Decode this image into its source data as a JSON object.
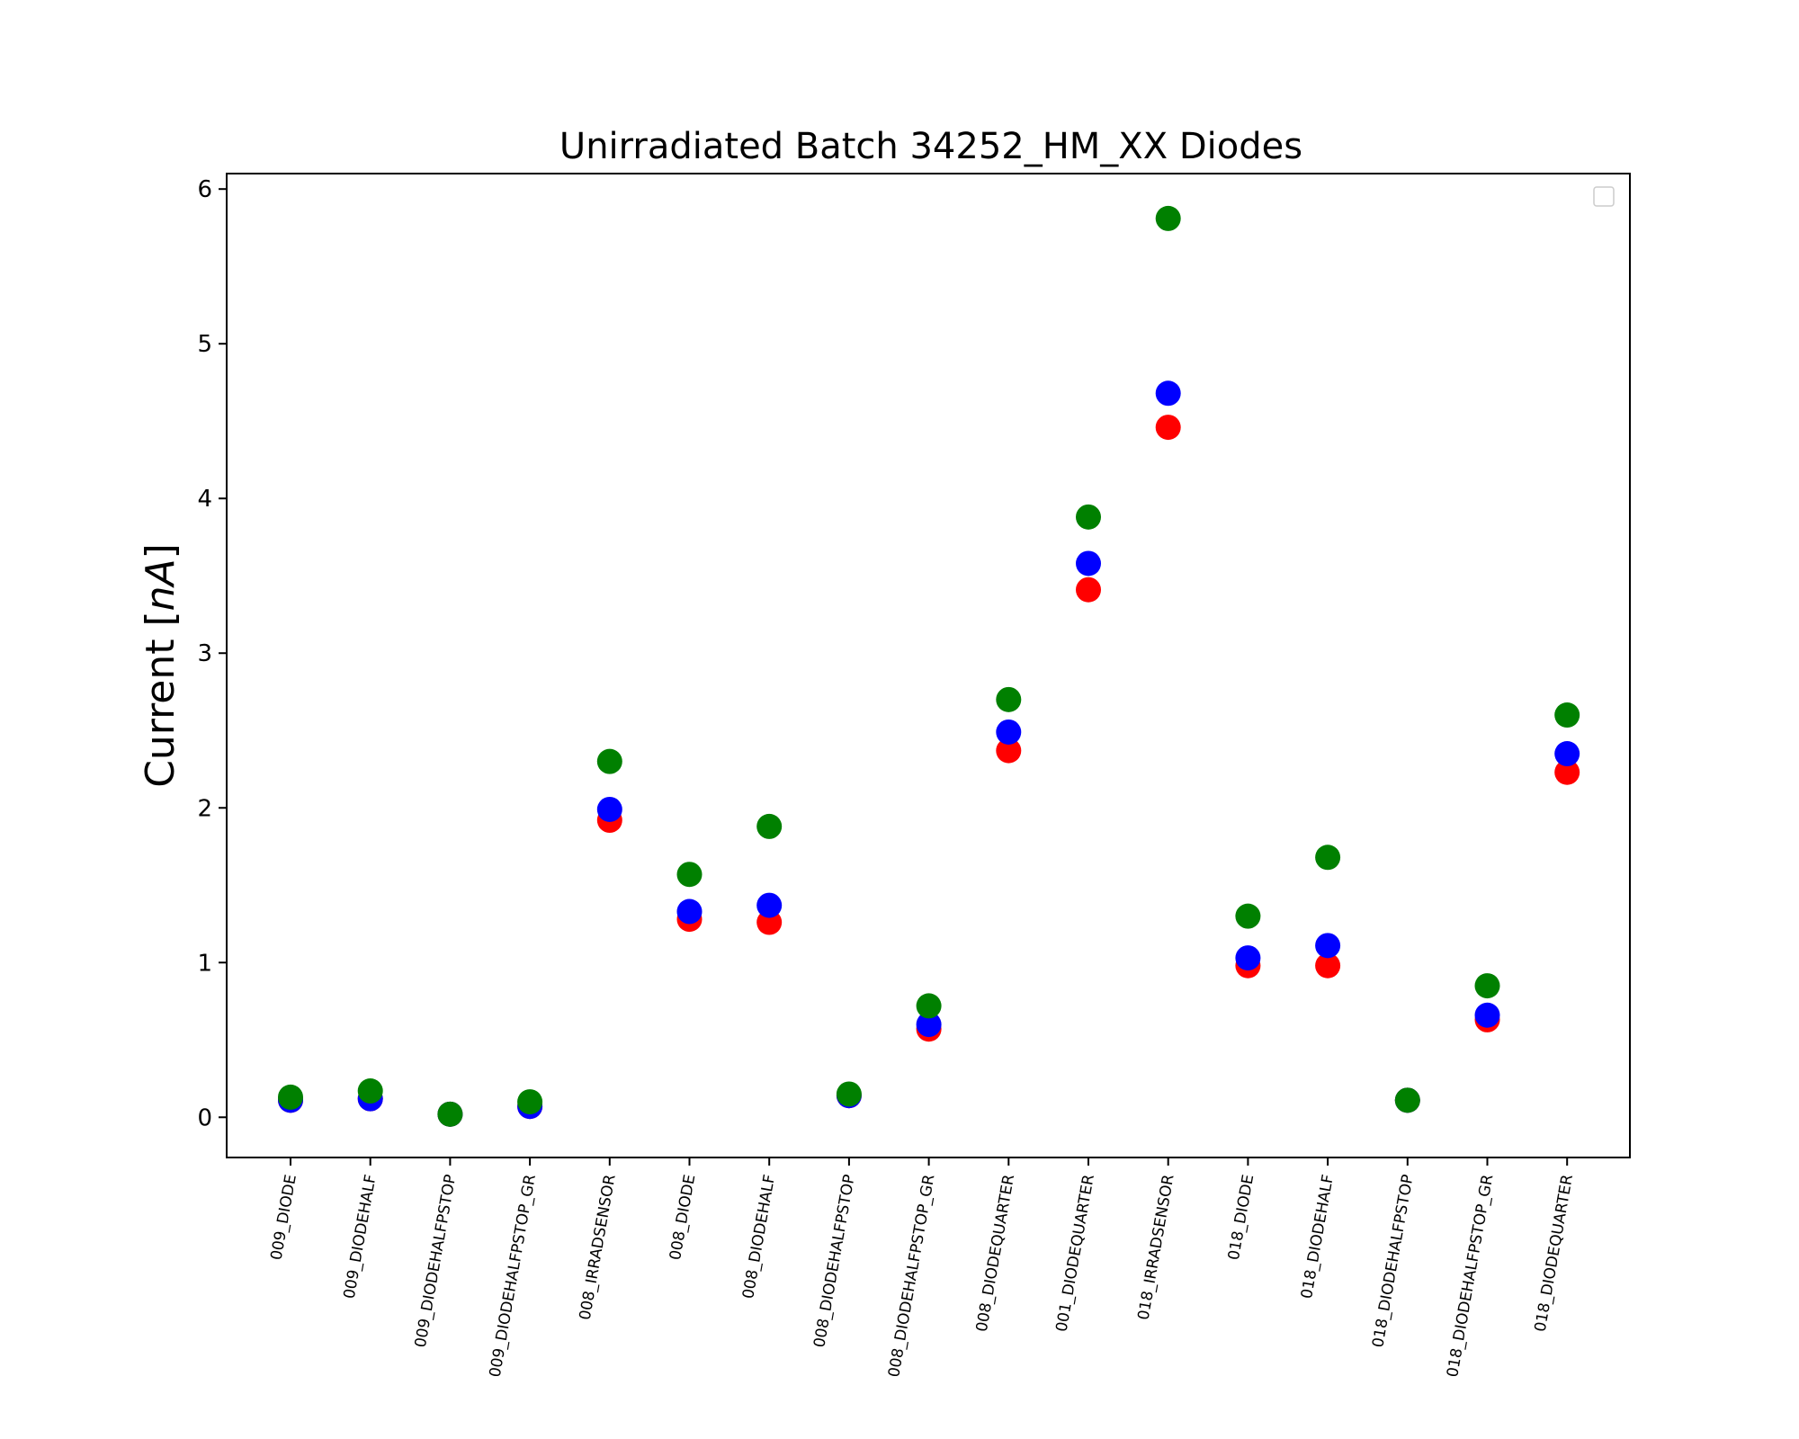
{
  "chart_data": {
    "type": "scatter",
    "title": "Unirradiated Batch 34252_HM_XX Diodes",
    "ylabel": "Current [nA]",
    "ylabel_text": "Current [",
    "ylabel_unit": "nA",
    "ylabel_close": "]",
    "xlabel": "",
    "ylim": [
      -0.26,
      6.1
    ],
    "yticks": [
      0,
      1,
      2,
      3,
      4,
      5,
      6
    ],
    "yticks_labels": [
      "0",
      "1",
      "2",
      "3",
      "4",
      "5",
      "6"
    ],
    "grid": false,
    "legend": "top-right (empty)",
    "categories": [
      "009_DIODE",
      "009_DIODEHALF",
      "009_DIODEHALFPSTOP",
      "009_DIODEHALFPSTOP_GR",
      "008_IRRADSENSOR",
      "008_DIODE",
      "008_DIODEHALF",
      "008_DIODEHALFPSTOP",
      "008_DIODEHALFPSTOP_GR",
      "008_DIODEQUARTER",
      "001_DIODEQUARTER",
      "018_IRRADSENSOR",
      "018_DIODE",
      "018_DIODEHALF",
      "018_DIODEHALFPSTOP",
      "018_DIODEHALFPSTOP_GR",
      "018_DIODEQUARTER"
    ],
    "series": [
      {
        "color": "#ff0000",
        "values": [
          0.11,
          0.12,
          0.02,
          0.07,
          1.92,
          1.28,
          1.26,
          0.14,
          0.57,
          2.37,
          3.41,
          4.46,
          0.98,
          0.98,
          0.11,
          0.63,
          2.23
        ]
      },
      {
        "color": "#0000ff",
        "values": [
          0.11,
          0.12,
          0.02,
          0.07,
          1.99,
          1.33,
          1.37,
          0.14,
          0.6,
          2.49,
          3.58,
          4.68,
          1.03,
          1.11,
          0.11,
          0.66,
          2.35
        ]
      },
      {
        "color": "#008000",
        "values": [
          0.13,
          0.17,
          0.02,
          0.1,
          2.3,
          1.57,
          1.88,
          0.15,
          0.72,
          2.7,
          3.88,
          5.81,
          1.3,
          1.68,
          0.11,
          0.85,
          2.6
        ]
      }
    ]
  }
}
